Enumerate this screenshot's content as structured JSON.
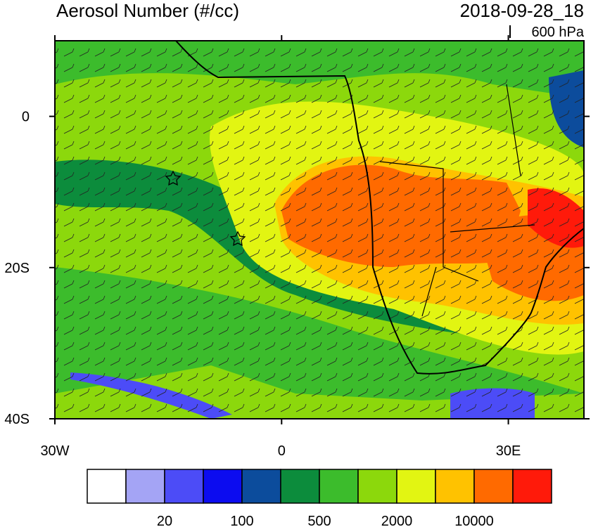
{
  "header": {
    "title": "Aerosol Number (#/cc)",
    "date": "2018-09-28_18",
    "level": "600 hPa"
  },
  "map": {
    "xlim": [
      -30,
      40
    ],
    "ylim": [
      -40,
      10
    ],
    "xticks": [
      {
        "value": -30,
        "label": "30W"
      },
      0,
      {
        "value": 30,
        "label": "30E"
      }
    ],
    "yticks": [
      0,
      {
        "value": -20,
        "label": "20S"
      },
      {
        "value": -40,
        "label": "40S"
      }
    ]
  },
  "colorbar": {
    "colors": [
      "#ffffff",
      "#a4a4f5",
      "#4c4cf7",
      "#0c0cf0",
      "#0c4c9c",
      "#0c8c3c",
      "#3cbc2c",
      "#8cd80c",
      "#e2f512",
      "#ffc200",
      "#ff6a00",
      "#ff1a0a"
    ],
    "labels": [
      "20",
      "100",
      "500",
      "2000",
      "10000"
    ]
  }
}
